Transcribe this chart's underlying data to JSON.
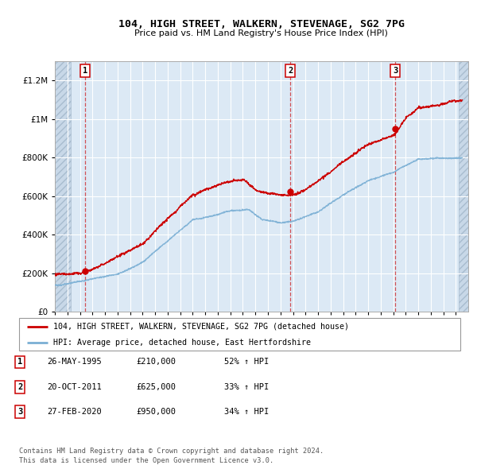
{
  "title": "104, HIGH STREET, WALKERN, STEVENAGE, SG2 7PG",
  "subtitle": "Price paid vs. HM Land Registry's House Price Index (HPI)",
  "legend_line1": "104, HIGH STREET, WALKERN, STEVENAGE, SG2 7PG (detached house)",
  "legend_line2": "HPI: Average price, detached house, East Hertfordshire",
  "footer1": "Contains HM Land Registry data © Crown copyright and database right 2024.",
  "footer2": "This data is licensed under the Open Government Licence v3.0.",
  "transactions": [
    {
      "label": "1",
      "date": "26-MAY-1995",
      "price": 210000,
      "hpi_change": "52% ↑ HPI",
      "x_year": 1995.4
    },
    {
      "label": "2",
      "date": "20-OCT-2011",
      "price": 625000,
      "hpi_change": "33% ↑ HPI",
      "x_year": 2011.8
    },
    {
      "label": "3",
      "date": "27-FEB-2020",
      "price": 950000,
      "hpi_change": "34% ↑ HPI",
      "x_year": 2020.15
    }
  ],
  "ylim": [
    0,
    1300000
  ],
  "xlim": [
    1993,
    2026
  ],
  "yticks": [
    0,
    200000,
    400000,
    600000,
    800000,
    1000000,
    1200000
  ],
  "ytick_labels": [
    "£0",
    "£200K",
    "£400K",
    "£600K",
    "£800K",
    "£1M",
    "£1.2M"
  ],
  "bg_color": "#dce9f5",
  "hatch_color": "#b0c4d8",
  "grid_color": "#ffffff",
  "line_color_red": "#cc0000",
  "line_color_blue": "#7aafd4",
  "marker_color_red": "#cc0000"
}
